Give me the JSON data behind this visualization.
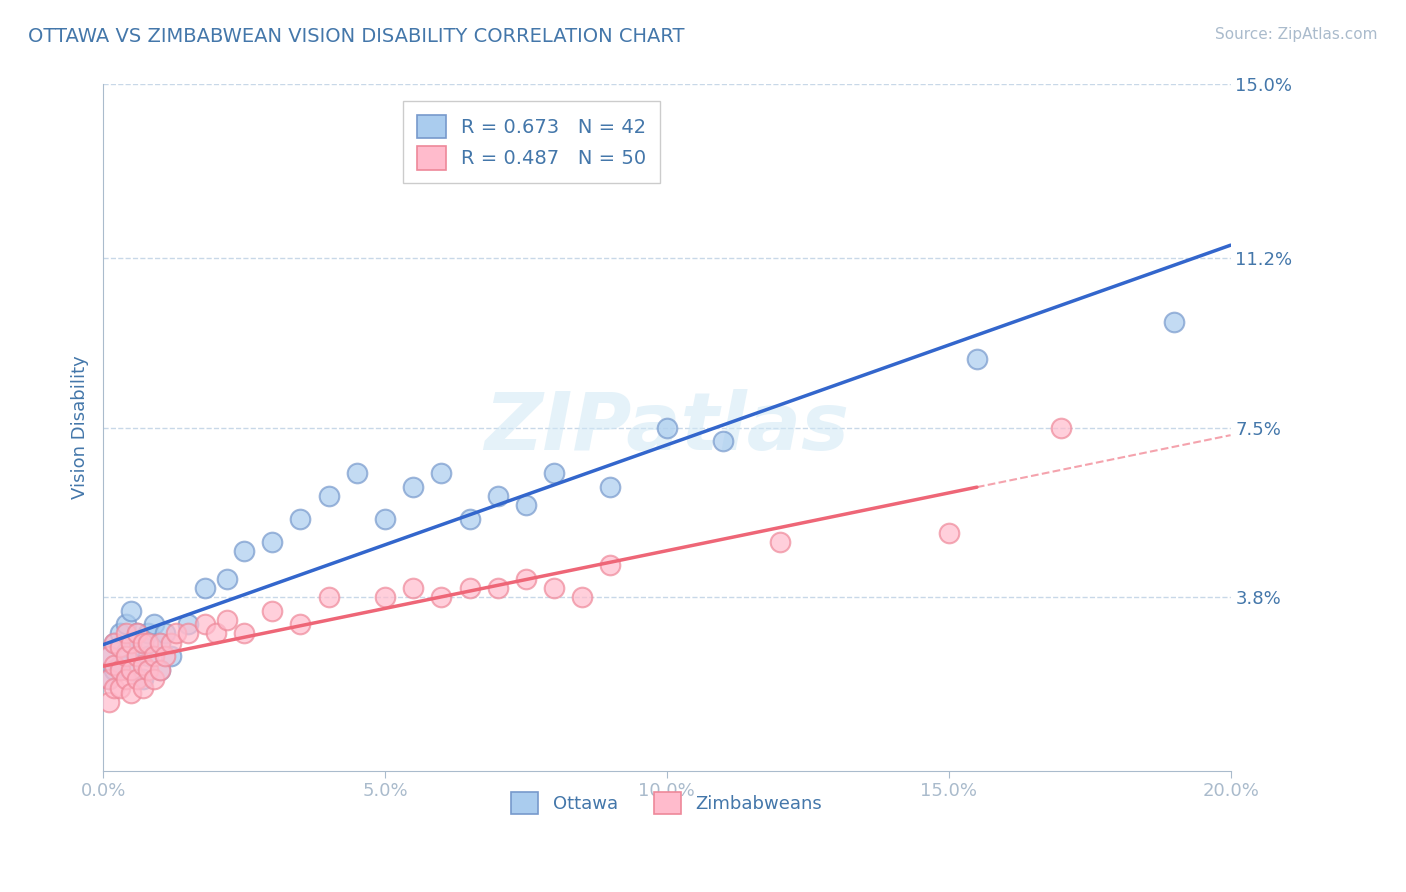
{
  "title": "OTTAWA VS ZIMBABWEAN VISION DISABILITY CORRELATION CHART",
  "source": "Source: ZipAtlas.com",
  "ylabel": "Vision Disability",
  "xlim": [
    0.0,
    0.2
  ],
  "ylim": [
    0.0,
    0.15
  ],
  "xticks": [
    0.0,
    0.05,
    0.1,
    0.15,
    0.2
  ],
  "xtick_labels": [
    "0.0%",
    "5.0%",
    "10.0%",
    "15.0%",
    "20.0%"
  ],
  "yticks": [
    0.0,
    0.038,
    0.075,
    0.112,
    0.15
  ],
  "ytick_labels": [
    "",
    "3.8%",
    "7.5%",
    "11.2%",
    "15.0%"
  ],
  "grid_color": "#c8d8e8",
  "background_color": "#ffffff",
  "title_color": "#4477aa",
  "axis_color": "#aabbcc",
  "ottawa_fill": "#aaccee",
  "ottawa_edge": "#7799cc",
  "zimbabwean_fill": "#ffbbcc",
  "zimbabwean_edge": "#ee8899",
  "ottawa_line_color": "#3366cc",
  "zimbabwean_line_color": "#ee6677",
  "legend_R1": "R = 0.673",
  "legend_N1": "N = 42",
  "legend_R2": "R = 0.487",
  "legend_N2": "N = 50",
  "watermark": "ZIPatlas",
  "ottawa_x": [
    0.001,
    0.001,
    0.002,
    0.002,
    0.003,
    0.003,
    0.004,
    0.004,
    0.005,
    0.005,
    0.005,
    0.006,
    0.006,
    0.007,
    0.007,
    0.008,
    0.008,
    0.009,
    0.01,
    0.01,
    0.011,
    0.012,
    0.015,
    0.018,
    0.022,
    0.025,
    0.03,
    0.035,
    0.04,
    0.045,
    0.05,
    0.055,
    0.06,
    0.065,
    0.07,
    0.075,
    0.08,
    0.09,
    0.1,
    0.11,
    0.155,
    0.19
  ],
  "ottawa_y": [
    0.02,
    0.025,
    0.022,
    0.028,
    0.023,
    0.03,
    0.026,
    0.032,
    0.022,
    0.028,
    0.035,
    0.025,
    0.03,
    0.02,
    0.027,
    0.03,
    0.025,
    0.032,
    0.028,
    0.022,
    0.03,
    0.025,
    0.032,
    0.04,
    0.042,
    0.048,
    0.05,
    0.055,
    0.06,
    0.065,
    0.055,
    0.062,
    0.065,
    0.055,
    0.06,
    0.058,
    0.065,
    0.062,
    0.075,
    0.072,
    0.09,
    0.098
  ],
  "zimbabwean_x": [
    0.001,
    0.001,
    0.001,
    0.002,
    0.002,
    0.002,
    0.003,
    0.003,
    0.003,
    0.004,
    0.004,
    0.004,
    0.005,
    0.005,
    0.005,
    0.006,
    0.006,
    0.006,
    0.007,
    0.007,
    0.007,
    0.008,
    0.008,
    0.009,
    0.009,
    0.01,
    0.01,
    0.011,
    0.012,
    0.013,
    0.015,
    0.018,
    0.02,
    0.022,
    0.025,
    0.03,
    0.035,
    0.04,
    0.05,
    0.055,
    0.06,
    0.065,
    0.07,
    0.075,
    0.08,
    0.085,
    0.09,
    0.12,
    0.15,
    0.17
  ],
  "zimbabwean_y": [
    0.015,
    0.02,
    0.025,
    0.018,
    0.023,
    0.028,
    0.018,
    0.022,
    0.027,
    0.02,
    0.025,
    0.03,
    0.017,
    0.022,
    0.028,
    0.02,
    0.025,
    0.03,
    0.018,
    0.023,
    0.028,
    0.022,
    0.028,
    0.02,
    0.025,
    0.022,
    0.028,
    0.025,
    0.028,
    0.03,
    0.03,
    0.032,
    0.03,
    0.033,
    0.03,
    0.035,
    0.032,
    0.038,
    0.038,
    0.04,
    0.038,
    0.04,
    0.04,
    0.042,
    0.04,
    0.038,
    0.045,
    0.05,
    0.052,
    0.075
  ]
}
